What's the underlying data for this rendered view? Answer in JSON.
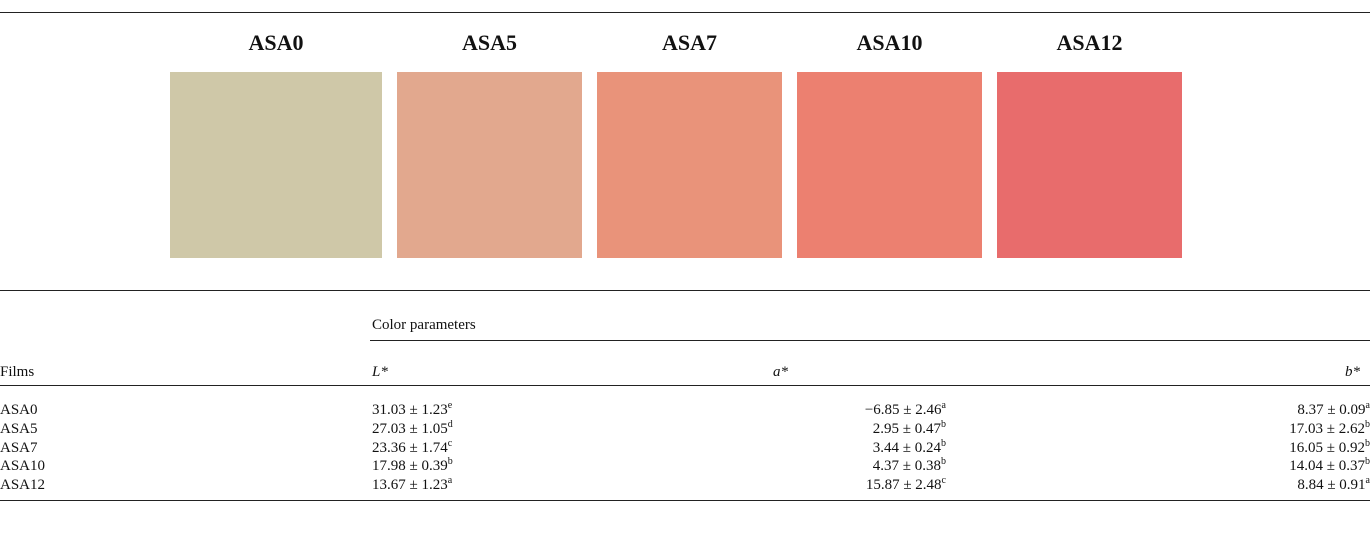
{
  "samples": [
    {
      "label": "ASA0",
      "color": "#cfc8a8"
    },
    {
      "label": "ASA5",
      "color": "#e2a88e"
    },
    {
      "label": "ASA7",
      "color": "#e9937a"
    },
    {
      "label": "ASA10",
      "color": "#ec8070"
    },
    {
      "label": "ASA12",
      "color": "#e86c6c"
    }
  ],
  "table": {
    "group_header": "Color parameters",
    "headers": [
      "Films",
      "L*",
      "a*",
      "b*"
    ],
    "rows": [
      [
        "ASA0",
        {
          "text": "31.03 ± 1.23",
          "sup": "e"
        },
        {
          "text": "−6.85 ± 2.46",
          "sup": "a"
        },
        {
          "text": "8.37 ± 0.09",
          "sup": "a"
        }
      ],
      [
        "ASA5",
        {
          "text": "27.03 ± 1.05",
          "sup": "d"
        },
        {
          "text": "2.95 ± 0.47",
          "sup": "b"
        },
        {
          "text": "17.03 ± 2.62",
          "sup": "b"
        }
      ],
      [
        "ASA7",
        {
          "text": "23.36 ± 1.74",
          "sup": "c"
        },
        {
          "text": "3.44 ± 0.24",
          "sup": "b"
        },
        {
          "text": "16.05 ± 0.92",
          "sup": "b"
        }
      ],
      [
        "ASA10",
        {
          "text": "17.98 ± 0.39",
          "sup": "b"
        },
        {
          "text": "4.37 ± 0.38",
          "sup": "b"
        },
        {
          "text": "14.04 ± 0.37",
          "sup": "b"
        }
      ],
      [
        "ASA12",
        {
          "text": "13.67 ± 1.23",
          "sup": "a"
        },
        {
          "text": "15.87 ± 2.48",
          "sup": "c"
        },
        {
          "text": "8.84 ± 0.91",
          "sup": "a"
        }
      ]
    ]
  }
}
